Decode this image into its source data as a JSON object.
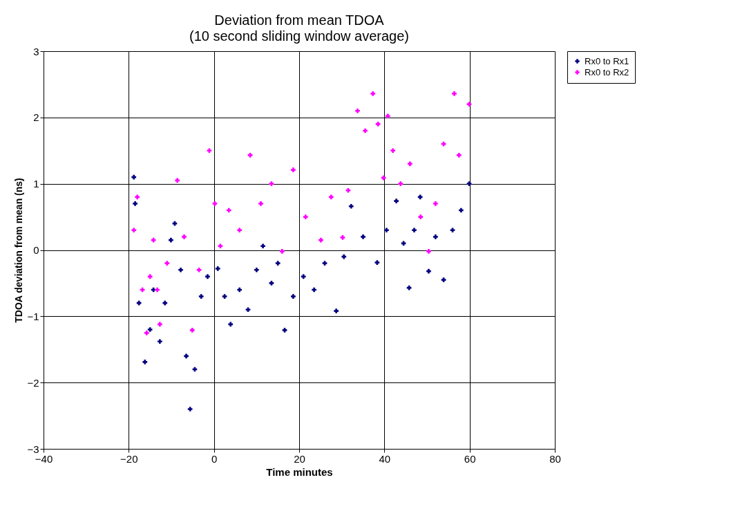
{
  "chart_data": {
    "type": "scatter",
    "title": "Deviation from mean TDOA",
    "subtitle": "(10 second sliding window average)",
    "xlabel": "Time minutes",
    "ylabel": "TDOA deviation from mean (ns)",
    "series": [
      {
        "name": "Rx0 to Rx1",
        "color": "#000080",
        "x": [
          -18.8,
          -18.5,
          -17.6,
          -16.2,
          -15.0,
          -14.2,
          -12.7,
          -11.5,
          -10.1,
          -9.2,
          -7.8,
          -6.5,
          -5.6,
          -4.5,
          -3.0,
          -1.5,
          0.9,
          2.5,
          3.9,
          6.0,
          8.0,
          10.0,
          11.5,
          13.5,
          15.0,
          16.6,
          18.6,
          21.0,
          23.5,
          26.0,
          28.7,
          30.5,
          32.2,
          35.0,
          38.3,
          40.5,
          42.8,
          44.5,
          45.8,
          47.0,
          48.4,
          50.4,
          52.0,
          53.9,
          56.0,
          58.0,
          59.9
        ],
        "values": [
          1.1,
          0.7,
          -0.8,
          -1.69,
          -1.2,
          -0.6,
          -1.38,
          -0.8,
          0.15,
          0.4,
          -0.3,
          -1.6,
          -2.4,
          -1.8,
          -0.7,
          -0.4,
          -0.28,
          -0.7,
          -1.12,
          -0.6,
          -0.9,
          -0.3,
          0.06,
          -0.5,
          -0.2,
          -1.21,
          -0.7,
          -0.4,
          -0.6,
          -0.2,
          -0.92,
          -0.1,
          0.66,
          0.2,
          -0.19,
          0.3,
          0.74,
          0.1,
          -0.57,
          0.3,
          0.8,
          -0.32,
          0.2,
          -0.45,
          0.3,
          0.6,
          1.0
        ]
      },
      {
        "name": "Rx0 to Rx2",
        "color": "#ff00ff",
        "x": [
          -18.8,
          -18.0,
          -16.8,
          -15.8,
          -15.0,
          -14.2,
          -13.3,
          -12.7,
          -11.0,
          -8.6,
          -7.0,
          -5.1,
          -3.5,
          -1.1,
          0.2,
          1.5,
          3.5,
          6.0,
          8.5,
          11.0,
          13.5,
          16.0,
          18.6,
          21.5,
          25.1,
          27.5,
          30.2,
          31.5,
          33.7,
          35.5,
          37.3,
          38.5,
          39.8,
          40.8,
          42.0,
          43.8,
          46.0,
          48.5,
          50.4,
          52.0,
          53.9,
          56.4,
          57.5,
          59.9
        ],
        "values": [
          0.3,
          0.8,
          -0.6,
          -1.25,
          -0.4,
          0.15,
          -0.6,
          -1.12,
          -0.2,
          1.05,
          0.2,
          -1.21,
          -0.3,
          1.5,
          0.7,
          0.06,
          0.6,
          0.3,
          1.43,
          0.7,
          1.0,
          -0.02,
          1.21,
          0.5,
          0.15,
          0.8,
          0.19,
          0.9,
          2.1,
          1.8,
          2.36,
          1.9,
          1.09,
          2.02,
          1.5,
          1.0,
          1.3,
          0.5,
          -0.02,
          0.7,
          1.6,
          2.36,
          1.43,
          2.2
        ]
      }
    ],
    "xlim": [
      -40,
      80
    ],
    "xticks": [
      -40,
      -20,
      0,
      20,
      40,
      60,
      80
    ],
    "ylim": [
      -3,
      3
    ],
    "yticks": [
      -3,
      -2,
      -1,
      0,
      1,
      2,
      3
    ],
    "grid": true,
    "legend": "right",
    "marker": "cross"
  }
}
